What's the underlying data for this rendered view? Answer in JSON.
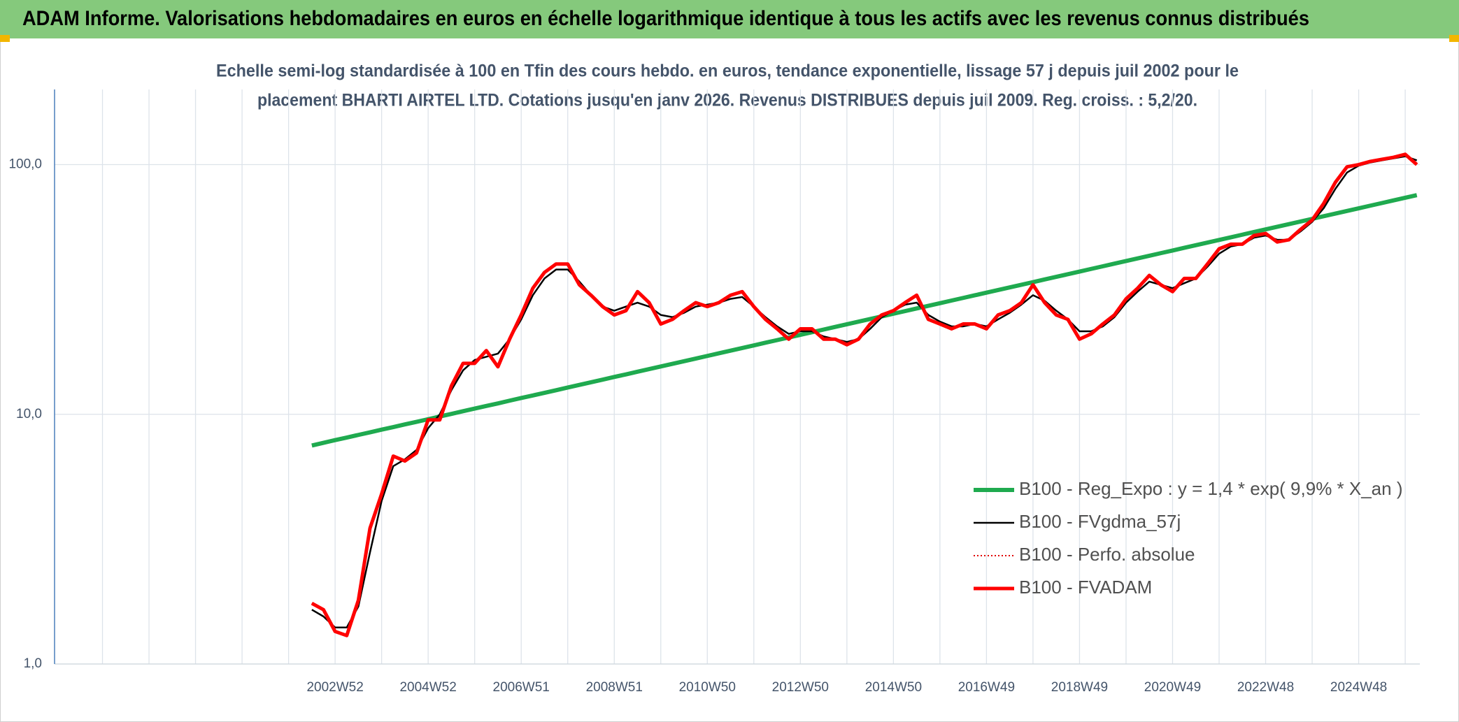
{
  "header": {
    "title": "ADAM Informe. Valorisations hebdomadaires en euros en échelle logarithmique identique à tous les actifs avec les revenus connus distribués"
  },
  "chart_data": {
    "type": "line",
    "subtitle": [
      "Echelle semi-log standardisée à 100 en Tfin des cours hebdo. en euros, tendance exponentielle, lissage 57 j depuis juil 2002 pour le",
      "placement BHARTI AIRTEL LTD. Cotations jusqu'en janv 2026. Revenus DISTRIBUES depuis juil 2009. Reg. croiss. : 5,2/20."
    ],
    "categories": [
      null,
      null,
      null,
      null,
      null,
      null,
      null,
      null,
      null,
      null,
      null,
      null,
      null,
      null,
      null,
      null,
      null,
      null,
      null,
      null,
      null,
      null,
      null,
      null,
      "2002W52",
      null,
      null,
      null,
      null,
      null,
      null,
      null,
      "2004W52",
      null,
      null,
      null,
      null,
      null,
      null,
      null,
      "2006W51",
      null,
      null,
      null,
      null,
      null,
      null,
      null,
      "2008W51",
      null,
      null,
      null,
      null,
      null,
      null,
      null,
      "2010W50",
      null,
      null,
      null,
      null,
      null,
      null,
      null,
      "2012W50",
      null,
      null,
      null,
      null,
      null,
      null,
      null,
      "2014W50",
      null,
      null,
      null,
      null,
      null,
      null,
      null,
      "2016W49",
      null,
      null,
      null,
      null,
      null,
      null,
      null,
      "2018W49",
      null,
      null,
      null,
      null,
      null,
      null,
      null,
      "2020W49",
      null,
      null,
      null,
      null,
      null,
      null,
      null,
      "2022W48",
      null,
      null,
      null,
      null,
      null,
      null,
      null,
      "2024W48",
      null,
      null,
      null,
      null,
      null
    ],
    "series": [
      {
        "name": "B100 - Reg_Expo : y = 1,4 * exp( 9,9% *  X_an )",
        "color": "#1faa4f",
        "style": "solid",
        "width": 6,
        "values": [
          null,
          null,
          null,
          null,
          null,
          null,
          null,
          null,
          null,
          null,
          null,
          null,
          null,
          null,
          null,
          null,
          null,
          null,
          null,
          null,
          null,
          null,
          7.5,
          7.69,
          7.88,
          8.07,
          8.27,
          8.47,
          8.68,
          8.89,
          9.11,
          9.33,
          9.56,
          9.8,
          10.04,
          10.29,
          10.54,
          10.8,
          11.06,
          11.34,
          11.62,
          11.9,
          12.19,
          12.49,
          12.8,
          13.12,
          13.44,
          13.77,
          14.11,
          14.45,
          14.81,
          15.17,
          15.55,
          15.93,
          16.32,
          16.72,
          17.13,
          17.56,
          17.99,
          18.43,
          18.88,
          19.35,
          19.82,
          20.31,
          20.81,
          21.32,
          21.85,
          22.39,
          22.94,
          23.5,
          24.08,
          24.67,
          25.28,
          25.9,
          26.54,
          27.19,
          27.86,
          28.55,
          29.25,
          29.97,
          30.71,
          31.46,
          32.24,
          33.03,
          33.84,
          34.68,
          35.53,
          36.4,
          37.3,
          38.22,
          39.16,
          40.12,
          41.11,
          42.12,
          43.15,
          44.22,
          45.3,
          46.42,
          47.56,
          48.73,
          49.93,
          51.16,
          52.42,
          53.71,
          55.03,
          56.38,
          57.77,
          59.19,
          60.65,
          62.14,
          63.67,
          65.24,
          66.84,
          68.49,
          70.17,
          71.9,
          73.67,
          75.48
        ]
      },
      {
        "name": "B100 - FVgdma_57j",
        "color": "#000000",
        "style": "solid",
        "width": 2.5,
        "values": [
          null,
          null,
          null,
          null,
          null,
          null,
          null,
          null,
          null,
          null,
          null,
          null,
          null,
          null,
          null,
          null,
          null,
          null,
          null,
          null,
          null,
          null,
          1.65,
          1.55,
          1.4,
          1.4,
          1.7,
          2.8,
          4.5,
          6.2,
          6.6,
          7.2,
          8.8,
          10,
          12.5,
          15,
          16.5,
          17,
          17.5,
          20,
          24,
          30,
          35,
          38,
          38,
          34,
          30,
          27,
          26,
          27,
          28,
          27,
          25,
          24.5,
          25.5,
          27,
          27.5,
          28,
          29,
          29.5,
          27,
          24.5,
          22.5,
          21,
          21.5,
          21.5,
          20.5,
          20,
          19.5,
          20,
          22,
          24.5,
          26,
          27.5,
          28,
          25,
          23.5,
          22.5,
          22.5,
          23,
          22.5,
          24,
          25.5,
          27.5,
          30,
          28.5,
          26,
          24,
          21.5,
          21.5,
          22.5,
          24.5,
          28,
          31,
          34,
          33,
          32,
          33.5,
          35,
          39,
          44,
          47,
          48,
          51,
          52,
          50,
          50,
          54,
          59,
          67,
          80,
          93,
          99,
          102,
          104,
          106,
          108,
          104
        ]
      },
      {
        "name": "B100 - Perfo. absolue",
        "color": "#e00000",
        "style": "dotted",
        "width": 2,
        "values": [
          null,
          null,
          null,
          null,
          null,
          null,
          null,
          null,
          null,
          null,
          null,
          null,
          null,
          null,
          null,
          null,
          null,
          null,
          null,
          null,
          null,
          null,
          1.75,
          1.65,
          1.35,
          1.3,
          1.8,
          3.5,
          4.8,
          6.8,
          6.5,
          7,
          9.5,
          9.5,
          13,
          16,
          16,
          18,
          15.5,
          20,
          25,
          32,
          37,
          40,
          40,
          33,
          30,
          27,
          25,
          26,
          31,
          28,
          23,
          24,
          26,
          28,
          27,
          28,
          30,
          31,
          27,
          24,
          22,
          20,
          22,
          22,
          20,
          20,
          19,
          20,
          23,
          25,
          26,
          28,
          30,
          24,
          23,
          22,
          23,
          23,
          22,
          25,
          26,
          28,
          33,
          28,
          25,
          24,
          20,
          21,
          23,
          25,
          29,
          32,
          36,
          33,
          31,
          35,
          35,
          40,
          46,
          48,
          48,
          52,
          53,
          49,
          50,
          55,
          60,
          70,
          85,
          98,
          100,
          103,
          105,
          107,
          110,
          100
        ]
      },
      {
        "name": "B100 - FVADAM",
        "color": "#ff0000",
        "style": "solid",
        "width": 5,
        "values": [
          null,
          null,
          null,
          null,
          null,
          null,
          null,
          null,
          null,
          null,
          null,
          null,
          null,
          null,
          null,
          null,
          null,
          null,
          null,
          null,
          null,
          null,
          1.75,
          1.65,
          1.35,
          1.3,
          1.8,
          3.5,
          4.8,
          6.8,
          6.5,
          7,
          9.5,
          9.5,
          13,
          16,
          16,
          18,
          15.5,
          20,
          25,
          32,
          37,
          40,
          40,
          33,
          30,
          27,
          25,
          26,
          31,
          28,
          23,
          24,
          26,
          28,
          27,
          28,
          30,
          31,
          27,
          24,
          22,
          20,
          22,
          22,
          20,
          20,
          19,
          20,
          23,
          25,
          26,
          28,
          30,
          24,
          23,
          22,
          23,
          23,
          22,
          25,
          26,
          28,
          33,
          28,
          25,
          24,
          20,
          21,
          23,
          25,
          29,
          32,
          36,
          33,
          31,
          35,
          35,
          40,
          46,
          48,
          48,
          52,
          53,
          49,
          50,
          55,
          60,
          70,
          85,
          98,
          100,
          103,
          105,
          107,
          110,
          100
        ]
      }
    ],
    "ylim": [
      1,
      200
    ],
    "ylog": true,
    "yticks": [
      {
        "value": 1,
        "label": "1,0"
      },
      {
        "value": 10,
        "label": "10,0"
      },
      {
        "value": 100,
        "label": "100,0"
      }
    ],
    "grid": true,
    "legend": "lower right"
  }
}
